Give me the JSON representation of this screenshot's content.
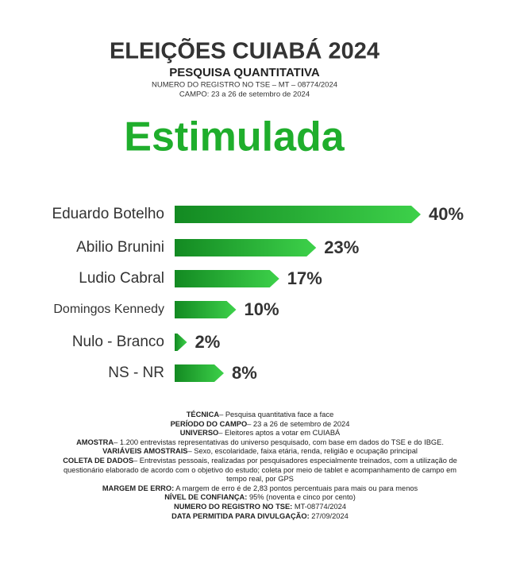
{
  "chart_data": {
    "type": "hbar",
    "title": "ELEIÇÕES CUIABÁ 2024",
    "subtitle": "PESQUISA QUANTITATIVA",
    "registry": "NUMERO DO REGISTRO NO TSE – MT – 08774/2024",
    "field": "CAMPO: 23 a 26 de setembro de 2024",
    "heading": "Estimulada",
    "categories": [
      "Eduardo Botelho",
      "Abilio Brunini",
      "Ludio Cabral",
      "Domingos Kennedy",
      "Nulo - Branco",
      "NS - NR"
    ],
    "values": [
      40,
      23,
      17,
      10,
      2,
      8
    ],
    "value_labels": [
      "40%",
      "23%",
      "17%",
      "10%",
      "2%",
      "8%"
    ],
    "color": "#1fa82c",
    "notes": [
      {
        "label": "TÉCNICA",
        "text": "– Pesquisa quantitativa face a face"
      },
      {
        "label": "PERÍODO DO CAMPO",
        "text": "– 23 a 26 de setembro de 2024"
      },
      {
        "label": "UNIVERSO",
        "text": "– Eleitores aptos a votar em CUIABÁ"
      },
      {
        "label": "AMOSTRA",
        "text": "– 1.200 entrevistas representativas do universo pesquisado, com base em dados do TSE e do IBGE."
      },
      {
        "label": "VARIÁVEIS AMOSTRAIS",
        "text": "– Sexo, escolaridade, faixa etária, renda, religião e ocupação principal"
      },
      {
        "label": "COLETA DE DADOS",
        "text": "– Entrevistas pessoais, realizadas por pesquisadores especialmente treinados, com a utilização de questionário elaborado de acordo com o objetivo do estudo; coleta por meio de tablet e acompanhamento de campo em tempo real, por GPS"
      },
      {
        "label": "MARGEM DE ERRO:",
        "text": " A margem de erro é de 2,83 pontos percentuais para mais ou para menos"
      },
      {
        "label": "NÍVEL DE CONFIANÇA:",
        "text": " 95% (noventa e cinco por cento)"
      },
      {
        "label": "NUMERO DO REGISTRO NO TSE:",
        "text": " MT-08774/2024"
      },
      {
        "label": "DATA PERMITIDA PARA DIVULGAÇÃO:",
        "text": " 27/09/2024"
      }
    ]
  }
}
